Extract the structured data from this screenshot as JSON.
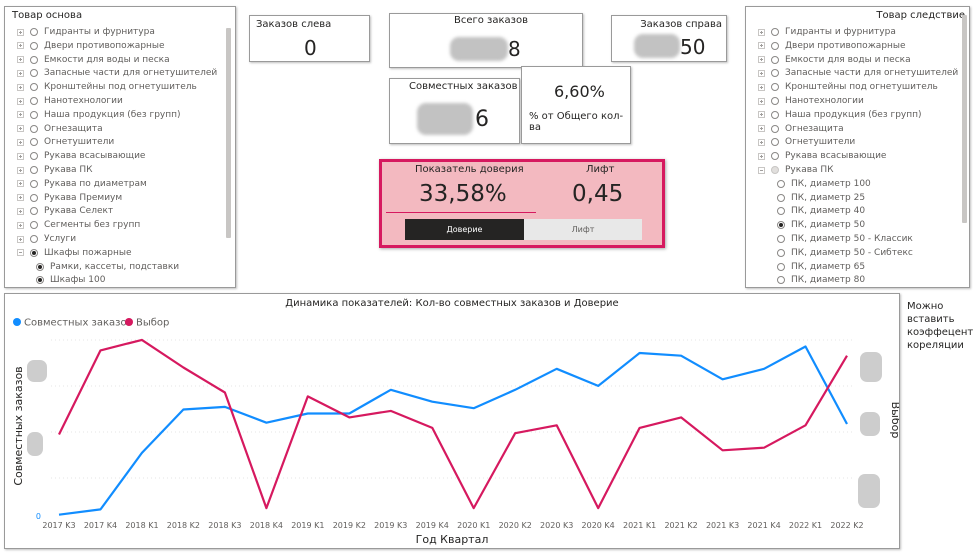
{
  "left_slicer": {
    "title": "Товар основа",
    "items": [
      {
        "label": "Гидранты и фурнитура"
      },
      {
        "label": "Двери противопожарные"
      },
      {
        "label": "Емкости для воды и песка"
      },
      {
        "label": "Запасные части для огнетушителей"
      },
      {
        "label": "Кронштейны под огнетушитель"
      },
      {
        "label": "Нанотехнологии"
      },
      {
        "label": "Наша продукция (без групп)"
      },
      {
        "label": "Огнезащита"
      },
      {
        "label": "Огнетушители"
      },
      {
        "label": "Рукава всасывающие"
      },
      {
        "label": "Рукава ПК"
      },
      {
        "label": "Рукава по диаметрам"
      },
      {
        "label": "Рукава Премиум"
      },
      {
        "label": "Рукава Селект"
      },
      {
        "label": "Сегменты без групп"
      },
      {
        "label": "Услуги"
      },
      {
        "label": "Шкафы пожарные"
      }
    ],
    "children": [
      {
        "label": "Рамки, кассеты, подставки"
      },
      {
        "label": "Шкафы 100"
      }
    ]
  },
  "right_slicer": {
    "title": "Товар следствие",
    "items": [
      {
        "label": "Гидранты и фурнитура"
      },
      {
        "label": "Двери противопожарные"
      },
      {
        "label": "Емкости для воды и песка"
      },
      {
        "label": "Запасные части для огнетушителей"
      },
      {
        "label": "Кронштейны под огнетушитель"
      },
      {
        "label": "Нанотехнологии"
      },
      {
        "label": "Наша продукция (без групп)"
      },
      {
        "label": "Огнезащита"
      },
      {
        "label": "Огнетушители"
      },
      {
        "label": "Рукава всасывающие"
      },
      {
        "label": "Рукава ПК"
      }
    ],
    "children": [
      {
        "label": "ПК, диаметр 100"
      },
      {
        "label": "ПК, диаметр 25"
      },
      {
        "label": "ПК, диаметр 40"
      },
      {
        "label": "ПК, диаметр 50"
      },
      {
        "label": "ПК, диаметр 50 - Классик"
      },
      {
        "label": "ПК, диаметр 50 - Сибтекс"
      },
      {
        "label": "ПК, диаметр 65"
      },
      {
        "label": "ПК, диаметр 80"
      }
    ]
  },
  "cards": {
    "orders_left": {
      "label": "Заказов слева",
      "value": "0"
    },
    "orders_total": {
      "label": "Всего заказов",
      "value": "8"
    },
    "orders_right": {
      "label": "Заказов справа",
      "value": "50"
    },
    "joint_orders": {
      "label": "Совместных заказов",
      "value": "6"
    },
    "share": {
      "value": "6,60%",
      "label": "% от Общего кол-ва"
    }
  },
  "kpi": {
    "confidence_label": "Показатель доверия",
    "confidence_value": "33,58%",
    "lift_label": "Лифт",
    "lift_value": "0,45",
    "btn_confidence": "Доверие",
    "btn_lift": "Лифт",
    "accent": "#d6195f",
    "bg": "#f3b9c0"
  },
  "note": "Можно вставить коэффецент кореляции",
  "chart_data": {
    "type": "line",
    "title": "Динамика показателей: Кол-во совместных заказов и Доверие",
    "xlabel": "Год Квартал",
    "ylabel_left": "Совместных заказов",
    "ylabel_right": "Выбор",
    "left_axis_visible_tick": "0",
    "categories": [
      "2017 K3",
      "2017 K4",
      "2018 K1",
      "2018 K2",
      "2018 K3",
      "2018 K4",
      "2019 K1",
      "2019 K2",
      "2019 K3",
      "2019 K4",
      "2020 K1",
      "2020 K2",
      "2020 K3",
      "2020 K4",
      "2021 K1",
      "2021 K2",
      "2021 K3",
      "2021 K4",
      "2022 K1",
      "2022 K2"
    ],
    "series": [
      {
        "name": "Совместных заказов",
        "color": "#118dff",
        "axis": "left",
        "values": [
          0.5,
          2.5,
          24,
          40.5,
          41.5,
          35.5,
          39,
          39,
          48,
          43.5,
          41,
          48,
          56,
          49.5,
          62,
          61,
          52,
          56,
          64.5,
          35
        ]
      },
      {
        "name": "Выбор",
        "color": "#d6195f",
        "axis": "right",
        "values": [
          31,
          63,
          67,
          56.5,
          47,
          3,
          45.5,
          37.5,
          40,
          33.5,
          3,
          31.5,
          34.5,
          3,
          33.5,
          37.5,
          25,
          26,
          34.5,
          61
        ]
      }
    ],
    "ylim_left": [
      0,
      70
    ],
    "ylim_right": [
      0,
      70
    ],
    "legend_position": "top-left",
    "grid": true
  }
}
